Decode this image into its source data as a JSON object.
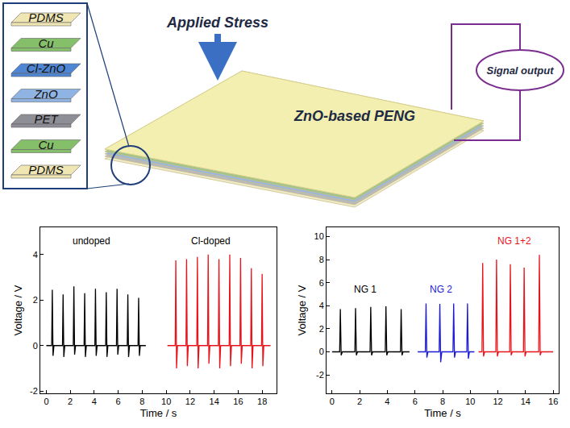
{
  "diagram": {
    "layers": [
      {
        "label": "PDMS",
        "color": "#efe6b4"
      },
      {
        "label": "Cu",
        "color": "#86bf6a"
      },
      {
        "label": "Cl-ZnO",
        "color": "#4f86d3"
      },
      {
        "label": "ZnO",
        "color": "#8fb4e3"
      },
      {
        "label": "PET",
        "color": "#8e8e96"
      },
      {
        "label": "Cu",
        "color": "#86bf6a"
      },
      {
        "label": "PDMS",
        "color": "#efe6b4"
      }
    ],
    "stress_label": "Applied Stress",
    "device_label": "ZnO-based PENG",
    "output_label": "Signal output"
  },
  "chart_data": [
    {
      "type": "line",
      "x_label": "Time / s",
      "y_label": "Voltage / V",
      "xlim": [
        -0.5,
        19.2
      ],
      "xticks": [
        0,
        2,
        4,
        6,
        8,
        10,
        12,
        14,
        16,
        18
      ],
      "ylim": [
        -2.1,
        5.2
      ],
      "yticks": [
        -2,
        0,
        2,
        4
      ],
      "annotations": [
        {
          "text": "undoped",
          "x": 3.8,
          "y": 4.6,
          "color": "#000000"
        },
        {
          "text": "Cl-doped",
          "x": 13.7,
          "y": 4.6,
          "color": "#000000"
        }
      ],
      "series": [
        {
          "color": "#000000",
          "x": [
            0,
            0.45,
            0.5,
            0.56,
            0.64,
            1.35,
            1.4,
            1.46,
            1.54,
            2.25,
            2.3,
            2.36,
            2.44,
            3.15,
            3.2,
            3.26,
            3.34,
            4.05,
            4.1,
            4.16,
            4.24,
            4.95,
            5.0,
            5.06,
            5.14,
            5.85,
            5.9,
            5.96,
            6.04,
            6.75,
            6.8,
            6.86,
            6.94,
            7.65,
            7.7,
            7.76,
            7.84,
            8.3
          ],
          "values": [
            0,
            0,
            2.45,
            -0.45,
            0,
            0,
            2.25,
            -0.5,
            0,
            0,
            2.6,
            -0.4,
            0,
            0,
            2.3,
            -0.5,
            0,
            0,
            2.5,
            -0.45,
            0,
            0,
            2.35,
            -0.5,
            0,
            0,
            2.5,
            -0.4,
            0,
            0,
            2.25,
            -0.5,
            0,
            0,
            2.1,
            -0.45,
            0,
            0
          ]
        },
        {
          "color": "#e8141c",
          "x": [
            10.1,
            10.75,
            10.8,
            10.86,
            10.94,
            11.65,
            11.7,
            11.76,
            11.84,
            12.55,
            12.6,
            12.66,
            12.74,
            13.45,
            13.5,
            13.56,
            13.64,
            14.35,
            14.4,
            14.46,
            14.54,
            15.25,
            15.3,
            15.36,
            15.44,
            16.15,
            16.2,
            16.26,
            16.34,
            17.05,
            17.1,
            17.16,
            17.24,
            17.95,
            18.0,
            18.06,
            18.14,
            18.7
          ],
          "values": [
            0,
            0,
            3.75,
            -1.0,
            0,
            0,
            3.8,
            -0.9,
            0,
            0,
            3.9,
            -1.0,
            0,
            0,
            4.0,
            -0.8,
            0,
            0,
            3.8,
            -1.0,
            0,
            0,
            4.0,
            -0.9,
            0,
            0,
            3.85,
            -0.8,
            0,
            0,
            3.4,
            -1.0,
            0,
            0,
            3.15,
            -0.9,
            0,
            0
          ]
        }
      ]
    },
    {
      "type": "line",
      "x_label": "Time / s",
      "y_label": "Voltage / V",
      "xlim": [
        -0.4,
        16.4
      ],
      "xticks": [
        0,
        2,
        4,
        6,
        8,
        10,
        12,
        14,
        16
      ],
      "ylim": [
        -3.6,
        10.8
      ],
      "yticks": [
        -2,
        0,
        2,
        4,
        6,
        8,
        10
      ],
      "annotations": [
        {
          "text": "NG 1",
          "x": 2.4,
          "y": 5.4,
          "color": "#000000"
        },
        {
          "text": "NG 2",
          "x": 7.9,
          "y": 5.4,
          "color": "#1c1cd6"
        },
        {
          "text": "NG 1+2",
          "x": 13.2,
          "y": 9.6,
          "color": "#e8141c"
        }
      ],
      "series": [
        {
          "color": "#000000",
          "x": [
            0,
            0.55,
            0.6,
            0.66,
            0.74,
            1.65,
            1.7,
            1.76,
            1.84,
            2.75,
            2.8,
            2.86,
            2.94,
            3.85,
            3.9,
            3.96,
            4.04,
            4.95,
            5.0,
            5.06,
            5.14,
            5.6
          ],
          "values": [
            0,
            0,
            3.7,
            -0.3,
            0,
            0,
            3.8,
            -0.3,
            0,
            0,
            3.9,
            -0.3,
            0,
            0,
            3.95,
            -0.3,
            0,
            0,
            3.7,
            -0.3,
            0,
            0
          ]
        },
        {
          "color": "#1c1cd6",
          "x": [
            6.2,
            6.75,
            6.8,
            6.86,
            6.94,
            7.75,
            7.8,
            7.86,
            7.94,
            8.75,
            8.8,
            8.86,
            8.94,
            9.75,
            9.8,
            9.86,
            9.94,
            10.3
          ],
          "values": [
            0,
            0,
            4.2,
            -0.5,
            0,
            0,
            4.15,
            -0.9,
            0,
            0,
            4.2,
            -0.5,
            0,
            0,
            4.2,
            -0.6,
            0,
            0
          ]
        },
        {
          "color": "#e8141c",
          "x": [
            10.6,
            10.85,
            10.9,
            10.96,
            11.04,
            11.85,
            11.9,
            11.96,
            12.04,
            12.85,
            12.9,
            12.96,
            13.04,
            13.85,
            13.9,
            13.96,
            14.04,
            14.95,
            15.0,
            15.06,
            15.14,
            16.0
          ],
          "values": [
            0,
            0,
            7.7,
            -0.4,
            0,
            0,
            8.0,
            -0.4,
            0,
            0,
            7.6,
            -0.3,
            0,
            0,
            7.3,
            -0.4,
            0,
            0,
            8.4,
            -0.3,
            0,
            0
          ]
        }
      ]
    }
  ]
}
